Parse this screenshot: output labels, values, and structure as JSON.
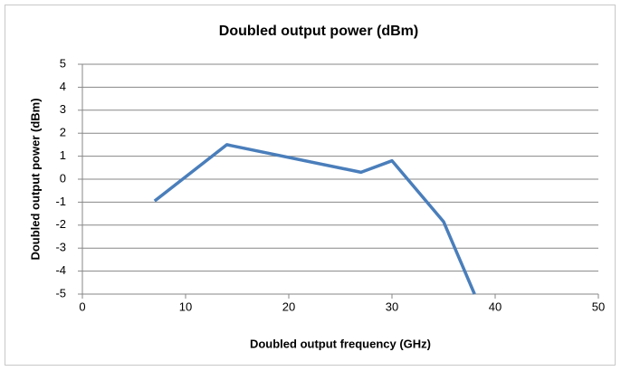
{
  "chart_data": {
    "type": "line",
    "title": "Doubled output power (dBm)",
    "x_label": "Doubled output frequency (GHz)",
    "y_label": "Doubled output power (dBm)",
    "x": [
      7,
      14,
      27,
      30,
      35,
      38
    ],
    "series": [
      {
        "name": "Doubled output power (dBm)",
        "color": "#4a7ebb",
        "values": [
          -0.95,
          1.5,
          0.3,
          0.8,
          -1.85,
          -5
        ]
      }
    ],
    "xlim": [
      0,
      50
    ],
    "xticks": [
      0,
      10,
      20,
      30,
      40,
      50
    ],
    "ylim": [
      -5,
      5
    ],
    "yticks": [
      -5,
      -4,
      -3,
      -2,
      -1,
      0,
      1,
      2,
      3,
      4,
      5
    ],
    "grid": true
  }
}
